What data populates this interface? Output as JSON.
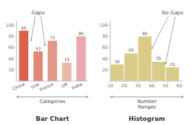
{
  "chart_data": [
    {
      "type": "bar",
      "title": "Bar Chart",
      "categories": [
        "China",
        "Usa",
        "France",
        "UK",
        "India"
      ],
      "values": [
        90,
        53,
        72,
        33,
        80
      ],
      "colors": [
        "#d9604a",
        "#e08878",
        "#e09888",
        "#ecb8a8",
        "#e8aab0"
      ],
      "ylim": [
        0,
        108
      ],
      "yticks": [
        20,
        40,
        60,
        80,
        100
      ],
      "x_label": "Categories",
      "annotations": [
        "Gaps"
      ],
      "data_labels": true
    },
    {
      "type": "histogram",
      "title": "Histogram",
      "bins": [
        10,
        20,
        30,
        40,
        50,
        60
      ],
      "values": [
        30,
        50,
        80,
        35,
        25
      ],
      "color": "#d8cc88",
      "xlim": [
        10,
        63
      ],
      "xticks": [
        10,
        20,
        30,
        40,
        50,
        60
      ],
      "ylim": [
        0,
        108
      ],
      "yticks": [
        20,
        40,
        60,
        80,
        100
      ],
      "x_label": "Number\nRanges",
      "annotations": [
        "No Gaps"
      ],
      "data_labels": true
    }
  ]
}
